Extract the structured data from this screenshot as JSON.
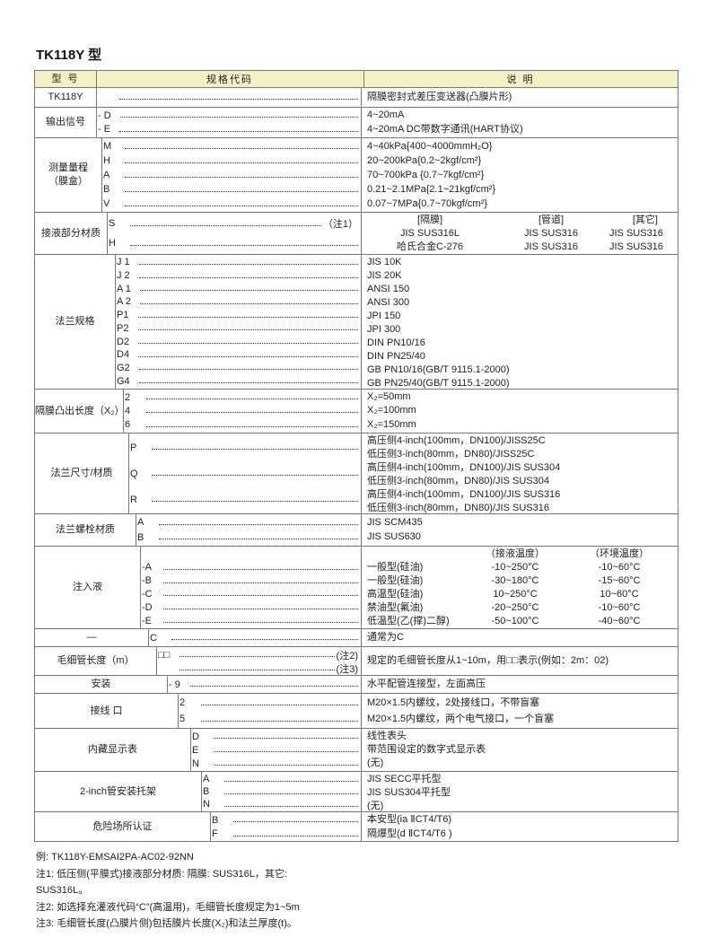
{
  "title": "TK118Y 型",
  "header": {
    "col_model": "型  号",
    "col_code": "规格代码",
    "col_desc": "说  明"
  },
  "groups": [
    {
      "label": "TK118Y",
      "codes": [
        {
          "code": "",
          "note": ""
        }
      ],
      "desc": [
        "隔膜密封式差压变送器(凸膜片形)"
      ]
    },
    {
      "label": "输出信号",
      "codes": [
        {
          "code": "- D"
        },
        {
          "code": "- E"
        }
      ],
      "desc": [
        "4~20mA",
        "4~20mA  DC带数字通讯(HART协议)"
      ]
    },
    {
      "label": "测量量程\n（膜盒）",
      "codes": [
        {
          "code": "M"
        },
        {
          "code": "H"
        },
        {
          "code": "A"
        },
        {
          "code": "B"
        },
        {
          "code": "V"
        }
      ],
      "desc": [
        "4~40kPa{400~4000mmH₂O}",
        "20~200kPa{0.2~2kgf/cm²}",
        "70~700kPa {0.7~7kgf/cm²}",
        "0.21~2.1MPa{2.1~21kgf/cm²}",
        "0.07~7MPa{0.7~70kgf/cm²}"
      ]
    },
    {
      "label": "接液部分材质",
      "codes": [
        {
          "code": "S",
          "note": "（注1）"
        },
        {
          "code": "H"
        }
      ],
      "desc_grid": [
        [
          "[隔膜]",
          "[管道]",
          "[其它]"
        ],
        [
          "JIS SUS316L",
          "JIS SUS316",
          "JIS SUS316"
        ],
        [
          "哈氏合金C-276",
          "JIS SUS316",
          "JIS SUS316"
        ]
      ]
    },
    {
      "label": "法兰规格",
      "codes": [
        {
          "code": "J 1"
        },
        {
          "code": "J 2"
        },
        {
          "code": "A 1"
        },
        {
          "code": "A 2"
        },
        {
          "code": "P1"
        },
        {
          "code": "P2"
        },
        {
          "code": "D2"
        },
        {
          "code": "D4"
        },
        {
          "code": "G2"
        },
        {
          "code": "G4"
        }
      ],
      "desc": [
        "JIS 10K",
        "JIS 20K",
        "ANSI 150",
        "ANSI 300",
        "JPI 150",
        "JPI 300",
        "DIN PN10/16",
        "DIN PN25/40",
        "GB PN10/16(GB/T 9115.1-2000)",
        "GB PN25/40(GB/T 9115.1-2000)"
      ]
    },
    {
      "label": "隔膜凸出长度（X₂）",
      "codes": [
        {
          "code": "2"
        },
        {
          "code": "4"
        },
        {
          "code": "6"
        }
      ],
      "desc": [
        "X₂=50mm",
        "X₂=100mm",
        "X₂=150mm"
      ]
    },
    {
      "label": "法兰尺寸/材质",
      "codes": [
        {
          "code": "P"
        },
        {
          "code": "Q"
        },
        {
          "code": "R"
        }
      ],
      "desc": [
        "高压侧4-inch(100mm，DN100)/JISS25C",
        "低压侧3-inch(80mm，DN80)/JISS25C",
        "高压侧4-inch(100mm，DN100)/JIS SUS304",
        "低压侧3-inch(80mm，DN80)/JIS SUS304",
        "高压侧4-inch(100mm，DN100)/JIS SUS316",
        "低压侧3-inch(80mm，DN80)/JIS SUS316"
      ]
    },
    {
      "label": "法兰螺栓材质",
      "codes": [
        {
          "code": "A"
        },
        {
          "code": "B"
        }
      ],
      "desc": [
        "JIS  SCM435",
        "JIS  SUS630"
      ]
    },
    {
      "label": "注入液",
      "codes": [
        {
          "code": "",
          "blank": true
        },
        {
          "code": "-A"
        },
        {
          "code": "-B"
        },
        {
          "code": "-C"
        },
        {
          "code": "-D"
        },
        {
          "code": "-E"
        }
      ],
      "desc_grid": [
        [
          "",
          "（接液温度）",
          "（环境温度）"
        ],
        [
          "一般型(硅油)",
          "-10~250°C",
          "-10~60°C"
        ],
        [
          "一般型(硅油)",
          "-30~180°C",
          "-15~60°C"
        ],
        [
          "高温型(硅油)",
          "10~250°C",
          "10~60°C"
        ],
        [
          "禁油型(氟油)",
          "-20~250°C",
          "-10~60°C"
        ],
        [
          "低温型(乙(撑)二醇)",
          "-50~100°C",
          "-40~60°C"
        ]
      ]
    },
    {
      "label": "—",
      "codes": [
        {
          "code": "C"
        }
      ],
      "desc": [
        "通常为C"
      ]
    },
    {
      "label": "毛细管长度（m）",
      "codes": [
        {
          "code": "□□",
          "note": "(注2)"
        },
        {
          "code": "",
          "note": "(注3)"
        }
      ],
      "desc": [
        "规定的毛细管长度从1~10m，用□□表示(例如：2m：02)"
      ]
    },
    {
      "label": "安装",
      "codes": [
        {
          "code": "- 9"
        }
      ],
      "desc": [
        "水平配管连接型，左面高压"
      ]
    },
    {
      "label": "接线 口",
      "codes": [
        {
          "code": "2"
        },
        {
          "code": "5"
        }
      ],
      "desc": [
        "M20×1.5内螺纹，2处接线口，不带盲塞",
        "M20×1.5内螺纹，两个电气接口，一个盲塞"
      ]
    },
    {
      "label": "内藏显示表",
      "codes": [
        {
          "code": "D"
        },
        {
          "code": "E"
        },
        {
          "code": "N"
        }
      ],
      "desc": [
        "线性表头",
        "带范围设定的数字式显示表",
        "(无)"
      ]
    },
    {
      "label": "2-inch管安装托架",
      "codes": [
        {
          "code": "A"
        },
        {
          "code": "B"
        },
        {
          "code": "N"
        }
      ],
      "desc": [
        "JIS  SECC平托型",
        "JIS  SUS304平托型",
        "(无)"
      ]
    },
    {
      "label": "危险场所认证",
      "codes": [
        {
          "code": "B"
        },
        {
          "code": "F"
        }
      ],
      "desc": [
        "本安型(ia ⅡCT4/T6)",
        "隔爆型(d ⅡCT4/T6 )"
      ]
    }
  ],
  "notes": [
    "例: TK118Y-EMSAI2PA-AC02-92NN",
    "注1: 低压侧(平膜式)接液部分材质: 隔膜: SUS316L，其它:",
    "SUS316L。",
    "注2: 如选择充灌液代码“C”(高温用)，毛细管长度规定为1~5m",
    "注3: 毛细管长度(凸膜片侧)包括膜片长度(X₂)和法兰厚度(t)。"
  ],
  "colors": {
    "header_bg": "#f3f1c4",
    "border": "#777777"
  }
}
